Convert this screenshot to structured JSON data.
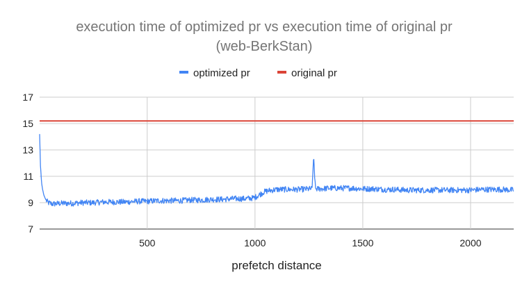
{
  "chart_data": {
    "type": "line",
    "title": "execution time of optimized pr vs execution time of original pr",
    "subtitle": "(web-BerkStan)",
    "xlabel": "prefetch distance",
    "ylabel": "",
    "xlim": [
      1,
      2200
    ],
    "ylim": [
      7,
      17
    ],
    "x_ticks": [
      500,
      1000,
      1500,
      2000
    ],
    "y_ticks": [
      7,
      9,
      11,
      13,
      15,
      17
    ],
    "grid": true,
    "legend_position": "top",
    "series": [
      {
        "name": "optimized pr",
        "color": "#4285f4",
        "points": [
          [
            1,
            14.2
          ],
          [
            5,
            11.8
          ],
          [
            10,
            10.5
          ],
          [
            15,
            10.0
          ],
          [
            20,
            9.6
          ],
          [
            30,
            9.2
          ],
          [
            40,
            9.0
          ],
          [
            60,
            8.9
          ],
          [
            100,
            8.95
          ],
          [
            150,
            8.95
          ],
          [
            200,
            9.0
          ],
          [
            250,
            9.0
          ],
          [
            300,
            9.05
          ],
          [
            350,
            9.05
          ],
          [
            400,
            9.05
          ],
          [
            450,
            9.1
          ],
          [
            500,
            9.1
          ],
          [
            550,
            9.15
          ],
          [
            600,
            9.15
          ],
          [
            650,
            9.15
          ],
          [
            700,
            9.2
          ],
          [
            750,
            9.2
          ],
          [
            800,
            9.25
          ],
          [
            850,
            9.25
          ],
          [
            900,
            9.3
          ],
          [
            950,
            9.3
          ],
          [
            990,
            9.35
          ],
          [
            1000,
            9.4
          ],
          [
            1020,
            9.6
          ],
          [
            1040,
            9.8
          ],
          [
            1060,
            9.9
          ],
          [
            1080,
            9.95
          ],
          [
            1100,
            10.0
          ],
          [
            1150,
            10.0
          ],
          [
            1200,
            10.0
          ],
          [
            1265,
            10.05
          ],
          [
            1272,
            12.6
          ],
          [
            1280,
            10.05
          ],
          [
            1300,
            10.05
          ],
          [
            1350,
            10.1
          ],
          [
            1400,
            10.1
          ],
          [
            1450,
            10.1
          ],
          [
            1500,
            10.05
          ],
          [
            1550,
            10.05
          ],
          [
            1600,
            10.0
          ],
          [
            1650,
            10.0
          ],
          [
            1700,
            9.95
          ],
          [
            1750,
            9.95
          ],
          [
            1800,
            9.95
          ],
          [
            1850,
            9.95
          ],
          [
            1900,
            9.95
          ],
          [
            1950,
            9.95
          ],
          [
            2000,
            9.95
          ],
          [
            2050,
            10.0
          ],
          [
            2100,
            10.0
          ],
          [
            2150,
            10.0
          ],
          [
            2200,
            9.95
          ]
        ],
        "noise": 0.22
      },
      {
        "name": "original pr",
        "color": "#db4437",
        "points": [
          [
            1,
            15.2
          ],
          [
            2200,
            15.2
          ]
        ]
      }
    ]
  }
}
